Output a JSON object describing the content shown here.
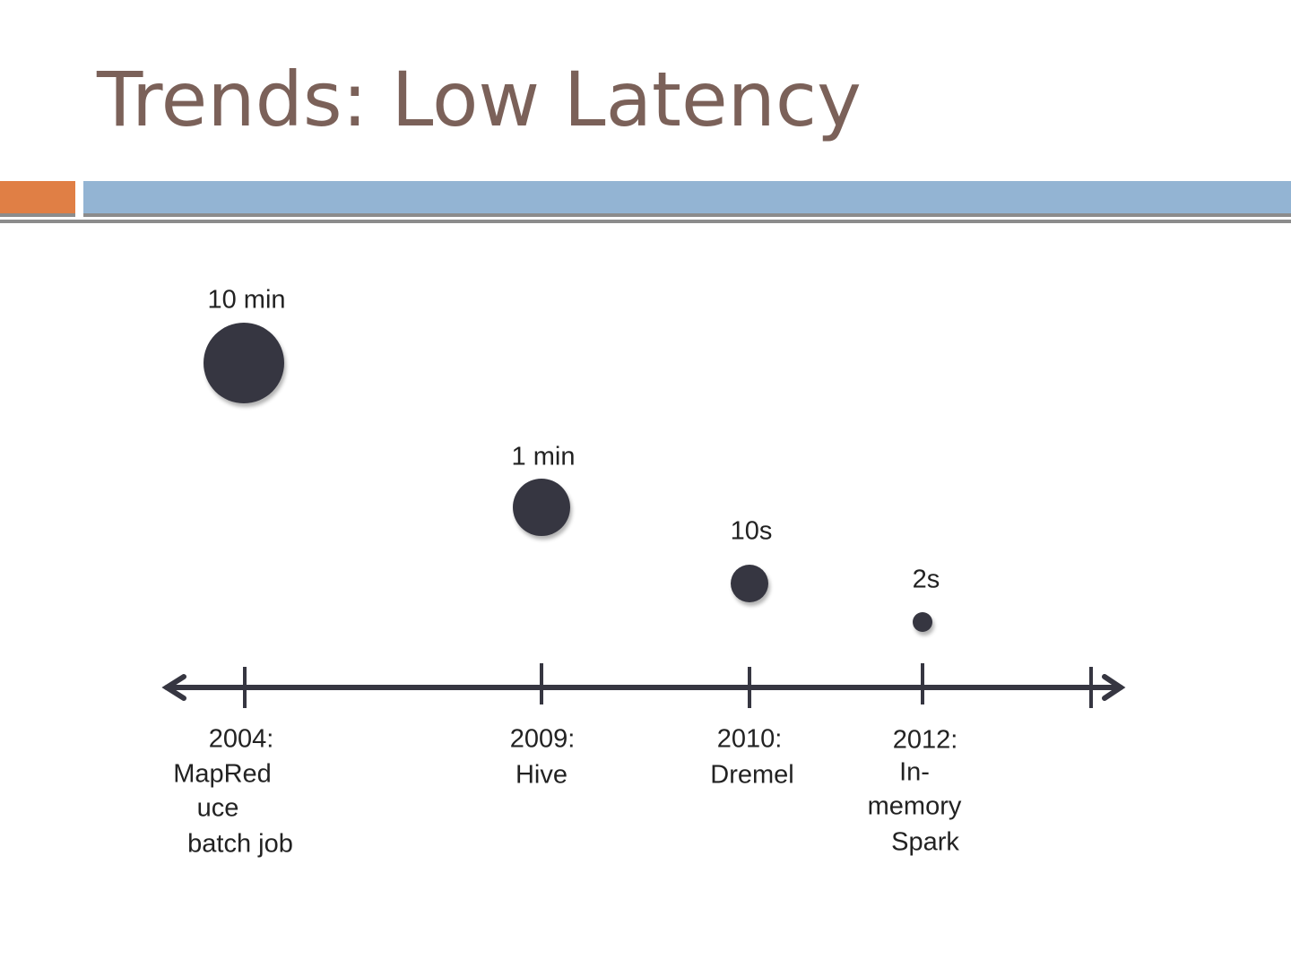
{
  "title": "Trends: Low Latency",
  "colors": {
    "accent_orange": "#e07f45",
    "accent_blue": "#93b4d3",
    "marker": "#363641",
    "title": "#7b6159"
  },
  "events": [
    {
      "latency": "10 min",
      "year_lines": [
        "2004:",
        "MapRed",
        "uce",
        "batch job"
      ]
    },
    {
      "latency": "1 min",
      "year_lines": [
        "2009:",
        "Hive"
      ]
    },
    {
      "latency": "10s",
      "year_lines": [
        "2010:",
        "Dremel"
      ]
    },
    {
      "latency": "2s",
      "year_lines": [
        "2012:",
        "In-",
        "memory",
        "Spark"
      ]
    }
  ]
}
